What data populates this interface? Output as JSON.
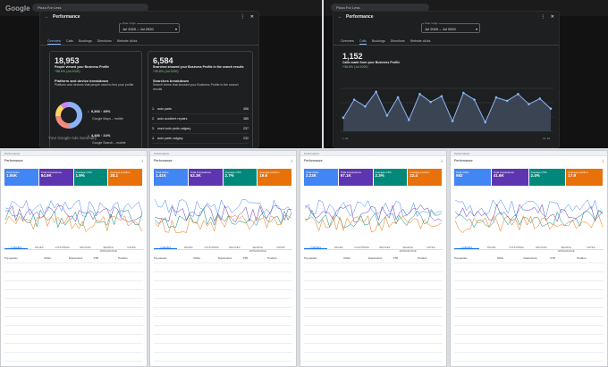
{
  "browser": {
    "logo": "Google",
    "search_text": "Pizza For Less"
  },
  "left_modal": {
    "title": "Performance",
    "date_label": "Date range",
    "date_value": "Jul 2020 – Jul 2020",
    "tabs": [
      "Overview",
      "Calls",
      "Bookings",
      "Directions",
      "Website clicks"
    ],
    "active_tab": 0,
    "profile_views": {
      "value": "18,953",
      "label": "People viewed your Business Profile",
      "trend": "+88.6% (Jul 2020)"
    },
    "breakdown": {
      "title": "Platform and device breakdown",
      "subtitle": "Platform and devices that people used to find your profile",
      "items": [
        {
          "value": "9,366 · 49%",
          "label": "Google Maps – mobile"
        },
        {
          "value": "4,486 · 24%",
          "label": "Google Search – mobile"
        },
        {
          "value": "3,050 · 16%",
          "label": "Google Search – desktop"
        },
        {
          "value": "2,051 · 11%",
          "label": "Google Maps – desktop"
        }
      ],
      "donut": [
        49,
        24,
        16,
        11
      ],
      "colors": [
        "#8ab4f8",
        "#f28b82",
        "#fdd663",
        "#c58af9"
      ]
    },
    "searches": {
      "value": "6,584",
      "label": "Searches showed your Business Profile in the search results",
      "trend": "+39.8% (Jul 2020)"
    },
    "search_terms": {
      "title": "Searches breakdown",
      "subtitle": "Search terms that showed your Business Profile in the search results",
      "rows": [
        {
          "rank": "1.",
          "term": "auto parts",
          "count": "456"
        },
        {
          "rank": "2.",
          "term": "auto accident repairs",
          "count": "385"
        },
        {
          "rank": "3.",
          "term": "used auto parts calgary",
          "count": "237"
        },
        {
          "rank": "4.",
          "term": "auto parts calgary",
          "count": "232"
        }
      ]
    }
  },
  "right_modal": {
    "title": "Performance",
    "date_label": "Date range",
    "date_value": "Jul 2020 – Jul 2020",
    "tabs": [
      "Overview",
      "Calls",
      "Bookings",
      "Directions",
      "Website clicks"
    ],
    "active_tab": 1,
    "calls": {
      "value": "1,152",
      "label": "Calls made from your Business Profile",
      "trend": "+36.6% (Jul 2020)"
    },
    "line": [
      12,
      28,
      22,
      35,
      14,
      30,
      10,
      33,
      26,
      31,
      9,
      34,
      28,
      8,
      30,
      27,
      33,
      24,
      29,
      20
    ],
    "x_start": "1 Jul",
    "x_end": "31 Jul"
  },
  "below_modal": {
    "ads_summary": "Your Google Ads Summary"
  },
  "light_panels": [
    {
      "title": "Performance",
      "metrics": [
        {
          "label": "Total clicks",
          "value": "1.65K",
          "color": "#4285f4"
        },
        {
          "label": "Total impressions",
          "value": "84.9K",
          "color": "#5e35b1"
        },
        {
          "label": "Average CTR",
          "value": "1.9%",
          "color": "#00897b"
        },
        {
          "label": "Average position",
          "value": "28.1",
          "color": "#e8710a"
        }
      ],
      "tabs": [
        "QUERIES",
        "PAGES",
        "COUNTRIES",
        "DEVICES",
        "SEARCH APPEARANCE",
        "DATES"
      ],
      "rows": [
        [
          "Top queries",
          "Clicks",
          "Impressions",
          "CTR",
          "Position"
        ]
      ]
    },
    {
      "title": "Performance",
      "metrics": [
        {
          "label": "Total clicks",
          "value": "1.41K",
          "color": "#4285f4"
        },
        {
          "label": "Total impressions",
          "value": "52.3K",
          "color": "#5e35b1"
        },
        {
          "label": "Average CTR",
          "value": "2.7%",
          "color": "#00897b"
        },
        {
          "label": "Average position",
          "value": "19.6",
          "color": "#e8710a"
        }
      ],
      "tabs": [
        "QUERIES",
        "PAGES",
        "COUNTRIES",
        "DEVICES",
        "SEARCH APPEARANCE",
        "DATES"
      ],
      "rows": [
        [
          "Top queries",
          "Clicks",
          "Impressions",
          "CTR",
          "Position"
        ]
      ]
    },
    {
      "title": "Performance",
      "metrics": [
        {
          "label": "Total clicks",
          "value": "2.23K",
          "color": "#4285f4"
        },
        {
          "label": "Total impressions",
          "value": "97.1K",
          "color": "#5e35b1"
        },
        {
          "label": "Average CTR",
          "value": "2.3%",
          "color": "#00897b"
        },
        {
          "label": "Average position",
          "value": "22.4",
          "color": "#e8710a"
        }
      ],
      "tabs": [
        "QUERIES",
        "PAGES",
        "COUNTRIES",
        "DEVICES",
        "SEARCH APPEARANCE",
        "DATES"
      ],
      "rows": [
        [
          "Top queries",
          "Clicks",
          "Impressions",
          "CTR",
          "Position"
        ]
      ]
    },
    {
      "title": "Performance",
      "metrics": [
        {
          "label": "Total clicks",
          "value": "982",
          "color": "#4285f4"
        },
        {
          "label": "Total impressions",
          "value": "41.6K",
          "color": "#5e35b1"
        },
        {
          "label": "Average CTR",
          "value": "2.4%",
          "color": "#00897b"
        },
        {
          "label": "Average position",
          "value": "17.9",
          "color": "#e8710a"
        }
      ],
      "tabs": [
        "QUERIES",
        "PAGES",
        "COUNTRIES",
        "DEVICES",
        "SEARCH APPEARANCE",
        "DATES"
      ],
      "rows": [
        [
          "Top queries",
          "Clicks",
          "Impressions",
          "CTR",
          "Position"
        ]
      ]
    }
  ]
}
